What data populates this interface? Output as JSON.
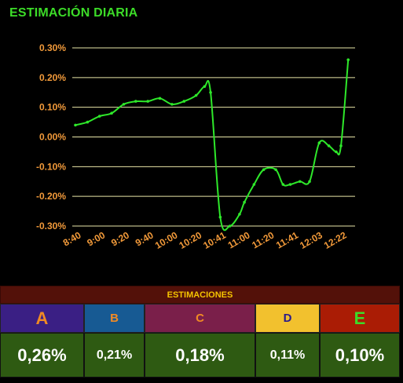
{
  "title": "ESTIMACIÓN DIARIA",
  "chart_data": {
    "type": "line",
    "title": "ESTIMACIÓN DIARIA",
    "y_ticks": [
      "0.30%",
      "0.20%",
      "0.10%",
      "0.00%",
      "-0.10%",
      "-0.20%",
      "-0.30%"
    ],
    "x_ticks": [
      "8:40",
      "9:00",
      "9:20",
      "9:40",
      "10:00",
      "10:20",
      "10:41",
      "11:00",
      "11:20",
      "11:41",
      "12:03",
      "12:22"
    ],
    "ylim": [
      -0.3,
      0.3
    ],
    "series_color": "#2ee82a",
    "grid": true,
    "x": [
      0,
      0.5,
      1.0,
      1.5,
      2.0,
      2.5,
      3.0,
      3.5,
      4.0,
      4.5,
      5.0,
      5.35,
      5.6,
      6.0,
      6.4,
      6.8,
      7.0,
      7.4,
      7.8,
      8.3,
      8.6,
      8.9,
      9.3,
      9.7,
      10.1,
      10.5,
      10.8,
      11.0,
      11.3
    ],
    "values": [
      0.04,
      0.05,
      0.07,
      0.08,
      0.11,
      0.12,
      0.12,
      0.13,
      0.11,
      0.12,
      0.14,
      0.17,
      0.15,
      -0.27,
      -0.3,
      -0.26,
      -0.22,
      -0.16,
      -0.11,
      -0.11,
      -0.16,
      -0.16,
      -0.15,
      -0.15,
      -0.02,
      -0.03,
      -0.05,
      -0.03,
      0.26
    ]
  },
  "estimaciones": {
    "header": "ESTIMACIONES",
    "columns": [
      {
        "label": "A",
        "value": "0,26%",
        "bg": "#3a1f84",
        "fg": "#f08a24"
      },
      {
        "label": "B",
        "value": "0,21%",
        "bg": "#175a93",
        "fg": "#f08a24"
      },
      {
        "label": "C",
        "value": "0,18%",
        "bg": "#7a1f4a",
        "fg": "#f08a24"
      },
      {
        "label": "D",
        "value": "0,11%",
        "bg": "#f2c12e",
        "fg": "#2a1a8a"
      },
      {
        "label": "E",
        "value": "0,10%",
        "bg": "#aa1c05",
        "fg": "#3cdc28"
      }
    ]
  }
}
